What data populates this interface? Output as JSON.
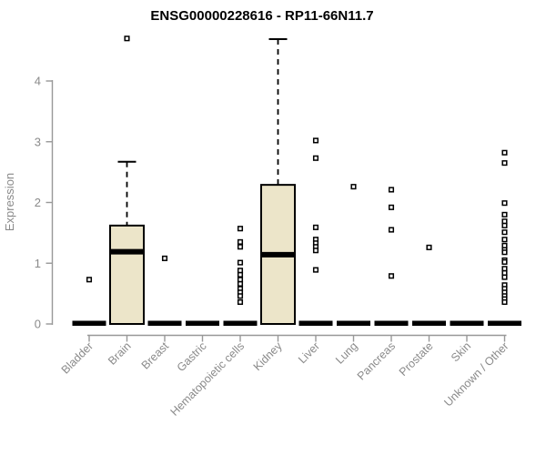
{
  "page": {
    "background": "#ffffff"
  },
  "chart_data": {
    "type": "boxplot",
    "title": "ENSG00000228616 - RP11-66N11.7",
    "ylabel": "Expression",
    "xlabel": "",
    "ylim": [
      0,
      4.8
    ],
    "yticks": [
      0,
      1,
      2,
      3,
      4
    ],
    "grid": false,
    "legend": "none",
    "categories": [
      "Bladder",
      "Brain",
      "Breast",
      "Gastric",
      "Hematopoietic cells",
      "Kidney",
      "Liver",
      "Lung",
      "Pancreas",
      "Prostate",
      "Skin",
      "Unknown / Other"
    ],
    "groups": [
      {
        "category": "Bladder",
        "q1": 0,
        "median": 0,
        "q3": 0,
        "whisker_high": 0,
        "outliers": [
          0.73
        ]
      },
      {
        "category": "Brain",
        "q1": 0,
        "median": 1.19,
        "q3": 1.62,
        "whisker_high": 2.67,
        "outliers": [
          4.7
        ]
      },
      {
        "category": "Breast",
        "q1": 0,
        "median": 0,
        "q3": 0,
        "whisker_high": 0,
        "outliers": [
          1.08
        ]
      },
      {
        "category": "Gastric",
        "q1": 0,
        "median": 0,
        "q3": 0,
        "whisker_high": 0,
        "outliers": []
      },
      {
        "category": "Hematopoietic cells",
        "q1": 0,
        "median": 0,
        "q3": 0,
        "whisker_high": 0,
        "outliers": [
          1.57,
          1.35,
          1.27,
          1.01,
          0.88,
          0.81,
          0.73,
          0.66,
          0.58,
          0.52,
          0.46,
          0.36
        ]
      },
      {
        "category": "Kidney",
        "q1": 0,
        "median": 1.14,
        "q3": 2.29,
        "whisker_high": 4.69,
        "outliers": []
      },
      {
        "category": "Liver",
        "q1": 0,
        "median": 0,
        "q3": 0,
        "whisker_high": 0,
        "outliers": [
          3.02,
          2.73,
          1.59,
          1.39,
          1.33,
          1.27,
          1.21,
          0.89
        ]
      },
      {
        "category": "Lung",
        "q1": 0,
        "median": 0,
        "q3": 0,
        "whisker_high": 0,
        "outliers": [
          2.26
        ]
      },
      {
        "category": "Pancreas",
        "q1": 0,
        "median": 0,
        "q3": 0,
        "whisker_high": 0,
        "outliers": [
          2.21,
          1.92,
          1.55,
          0.79
        ]
      },
      {
        "category": "Prostate",
        "q1": 0,
        "median": 0,
        "q3": 0,
        "whisker_high": 0,
        "outliers": [
          1.26
        ]
      },
      {
        "category": "Skin",
        "q1": 0,
        "median": 0,
        "q3": 0,
        "whisker_high": 0,
        "outliers": []
      },
      {
        "category": "Unknown / Other",
        "q1": 0,
        "median": 0,
        "q3": 0,
        "whisker_high": 0,
        "outliers": [
          2.82,
          2.65,
          1.99,
          1.8,
          1.69,
          1.62,
          1.51,
          1.39,
          1.29,
          1.22,
          1.18,
          1.05,
          1.02,
          0.91,
          0.84,
          0.77,
          0.64,
          0.58,
          0.52,
          0.46,
          0.41,
          0.36
        ]
      }
    ],
    "colors": {
      "box_fill": "#ece5c9",
      "box_stroke": "#000000",
      "median": "#000000",
      "whisker": "#000000",
      "outlier_stroke": "#000000",
      "outlier_fill": "#ffffff",
      "axis": "#989898",
      "tick_label": "#8a8a8a",
      "title": "#000000"
    }
  }
}
